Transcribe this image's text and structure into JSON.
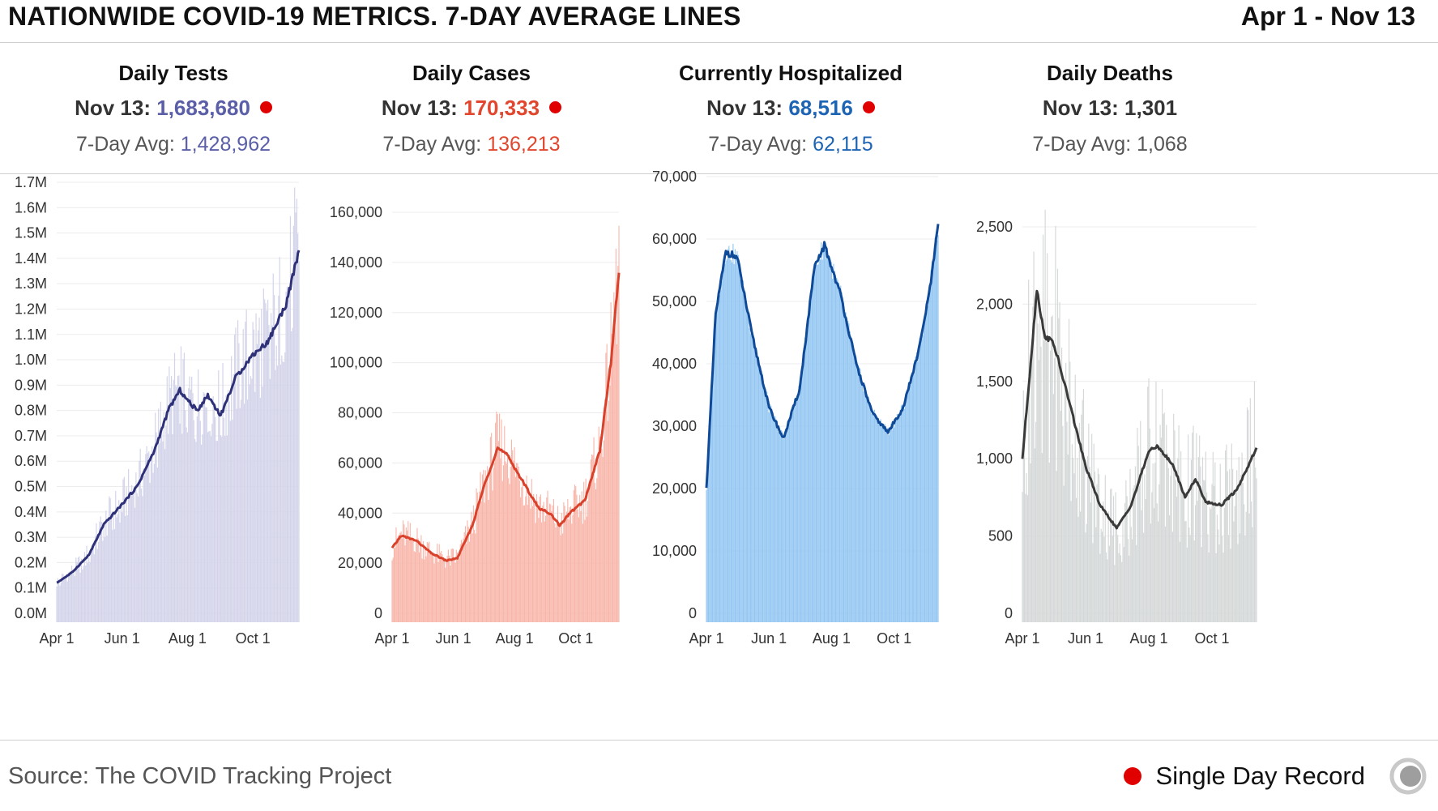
{
  "header": {
    "title": "NATIONWIDE COVID-19 METRICS. 7-DAY AVERAGE LINES",
    "date_range": "Apr 1 - Nov 13"
  },
  "panels": [
    {
      "title": "Daily Tests",
      "today_label": "Nov 13:",
      "today_value": "1,683,680",
      "avg_label": "7-Day Avg:",
      "avg_value": "1,428,962",
      "record": true,
      "value_color": "#5a5fa8"
    },
    {
      "title": "Daily Cases",
      "today_label": "Nov 13:",
      "today_value": "170,333",
      "avg_label": "7-Day Avg:",
      "avg_value": "136,213",
      "record": true,
      "value_color": "#e0472e"
    },
    {
      "title": "Currently Hospitalized",
      "today_label": "Nov 13:",
      "today_value": "68,516",
      "avg_label": "7-Day Avg:",
      "avg_value": "62,115",
      "record": true,
      "value_color": "#1e64b4"
    },
    {
      "title": "Daily Deaths",
      "today_label": "Nov 13:",
      "today_value": "1,301",
      "avg_label": "7-Day Avg:",
      "avg_value": "1,068",
      "record": false,
      "value_color": "#333333"
    }
  ],
  "footer": {
    "source": "Source: The COVID Tracking Project",
    "legend_label": "Single Day Record"
  },
  "colors": {
    "record_dot": "#e00000"
  },
  "chart_data": [
    {
      "type": "bar",
      "title": "Daily Tests",
      "bar_color": "#d3d4ea",
      "line_color": "#2e3178",
      "x_ticks": [
        "Apr 1",
        "Jun 1",
        "Aug 1",
        "Oct 1"
      ],
      "y_ticks": [
        "0.0M",
        "0.1M",
        "0.2M",
        "0.3M",
        "0.4M",
        "0.5M",
        "0.6M",
        "0.7M",
        "0.8M",
        "0.9M",
        "1.0M",
        "1.1M",
        "1.2M",
        "1.3M",
        "1.4M",
        "1.5M",
        "1.6M",
        "1.7M"
      ],
      "ylim": [
        0,
        1700000
      ],
      "avg_line": [
        [
          "Apr 1",
          120000
        ],
        [
          "Apr 15",
          160000
        ],
        [
          "May 1",
          230000
        ],
        [
          "May 15",
          350000
        ],
        [
          "Jun 1",
          430000
        ],
        [
          "Jun 15",
          500000
        ],
        [
          "Jul 1",
          640000
        ],
        [
          "Jul 15",
          810000
        ],
        [
          "Jul 25",
          880000
        ],
        [
          "Aug 1",
          840000
        ],
        [
          "Aug 10",
          800000
        ],
        [
          "Aug 20",
          860000
        ],
        [
          "Sep 1",
          780000
        ],
        [
          "Sep 15",
          930000
        ],
        [
          "Oct 1",
          1020000
        ],
        [
          "Oct 15",
          1070000
        ],
        [
          "Nov 1",
          1220000
        ],
        [
          "Nov 13",
          1428962
        ]
      ]
    },
    {
      "type": "bar",
      "title": "Daily Cases",
      "bar_color": "#f8b6aa",
      "line_color": "#d9412b",
      "x_ticks": [
        "Apr 1",
        "Jun 1",
        "Aug 1",
        "Oct 1"
      ],
      "y_ticks": [
        "0",
        "20,000",
        "40,000",
        "60,000",
        "80,000",
        "100,000",
        "120,000",
        "140,000",
        "160,000"
      ],
      "ylim": [
        0,
        170000
      ],
      "avg_line": [
        [
          "Apr 1",
          26000
        ],
        [
          "Apr 10",
          31000
        ],
        [
          "Apr 25",
          29000
        ],
        [
          "May 10",
          24000
        ],
        [
          "May 25",
          21000
        ],
        [
          "Jun 5",
          22000
        ],
        [
          "Jun 20",
          35000
        ],
        [
          "Jul 1",
          50000
        ],
        [
          "Jul 15",
          66000
        ],
        [
          "Jul 25",
          63000
        ],
        [
          "Aug 10",
          52000
        ],
        [
          "Aug 25",
          42000
        ],
        [
          "Sep 5",
          40000
        ],
        [
          "Sep 15",
          35000
        ],
        [
          "Sep 25",
          40000
        ],
        [
          "Oct 10",
          45000
        ],
        [
          "Oct 25",
          65000
        ],
        [
          "Nov 5",
          100000
        ],
        [
          "Nov 13",
          136213
        ]
      ]
    },
    {
      "type": "bar",
      "title": "Currently Hospitalized",
      "bar_color": "#93c6f2",
      "line_color": "#0f4a98",
      "x_ticks": [
        "Apr 1",
        "Jun 1",
        "Aug 1",
        "Oct 1"
      ],
      "y_ticks": [
        "0",
        "10,000",
        "20,000",
        "30,000",
        "40,000",
        "50,000",
        "60,000",
        "70,000"
      ],
      "ylim": [
        0,
        70000
      ],
      "avg_line": [
        [
          "Apr 1",
          20000
        ],
        [
          "Apr 10",
          48000
        ],
        [
          "Apr 20",
          58000
        ],
        [
          "May 1",
          57000
        ],
        [
          "May 15",
          45000
        ],
        [
          "Jun 1",
          33000
        ],
        [
          "Jun 15",
          28000
        ],
        [
          "Jul 1",
          36000
        ],
        [
          "Jul 15",
          55000
        ],
        [
          "Jul 25",
          59000
        ],
        [
          "Aug 10",
          51000
        ],
        [
          "Aug 25",
          40000
        ],
        [
          "Sep 10",
          32000
        ],
        [
          "Sep 25",
          29000
        ],
        [
          "Oct 10",
          33000
        ],
        [
          "Oct 25",
          42000
        ],
        [
          "Nov 5",
          52000
        ],
        [
          "Nov 13",
          62115
        ]
      ]
    },
    {
      "type": "bar",
      "title": "Daily Deaths",
      "bar_color": "#d5d8d8",
      "line_color": "#3a3a3a",
      "x_ticks": [
        "Apr 1",
        "Jun 1",
        "Aug 1",
        "Oct 1"
      ],
      "y_ticks": [
        "0",
        "500",
        "1,000",
        "1,500",
        "2,000",
        "2,500"
      ],
      "ylim": [
        0,
        2700
      ],
      "avg_line": [
        [
          "Apr 1",
          1000
        ],
        [
          "Apr 10",
          1700
        ],
        [
          "Apr 15",
          2100
        ],
        [
          "Apr 22",
          1800
        ],
        [
          "May 1",
          1750
        ],
        [
          "May 15",
          1400
        ],
        [
          "Jun 1",
          950
        ],
        [
          "Jun 15",
          700
        ],
        [
          "Jul 1",
          550
        ],
        [
          "Jul 15",
          700
        ],
        [
          "Aug 1",
          1050
        ],
        [
          "Aug 10",
          1080
        ],
        [
          "Aug 25",
          950
        ],
        [
          "Sep 5",
          750
        ],
        [
          "Sep 15",
          870
        ],
        [
          "Sep 25",
          720
        ],
        [
          "Oct 10",
          700
        ],
        [
          "Oct 25",
          800
        ],
        [
          "Nov 13",
          1068
        ]
      ]
    }
  ]
}
